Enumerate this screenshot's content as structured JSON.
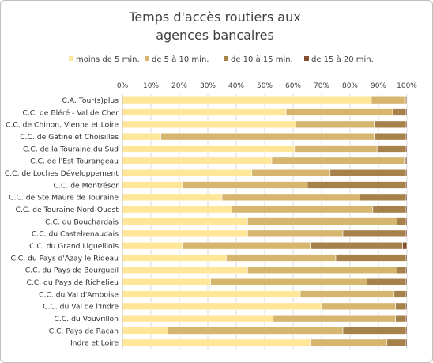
{
  "chart_data": {
    "type": "bar",
    "orientation": "horizontal",
    "stacked": "percent",
    "title": "Temps d'accès routiers aux agences bancaires",
    "title_lines": [
      "Temps d'accès routiers aux",
      "agences bancaires"
    ],
    "xlim": [
      0,
      100
    ],
    "x_ticks": [
      "0%",
      "10%",
      "20%",
      "30%",
      "40%",
      "50%",
      "60%",
      "70%",
      "80%",
      "90%",
      "100%"
    ],
    "grid": true,
    "legend_position": "top",
    "categories": [
      "C.A. Tour(s)plus",
      "C.C. de Bléré - Val de Cher",
      "C.C. de Chinon, Vienne et Loire",
      "C.C. de Gâtine et Choisilles",
      "C.C. de la Touraine du Sud",
      "C.C. de l'Est Tourangeau",
      "C.C. de Loches Développement",
      "C.C. de Montrésor",
      "C.C. de Ste Maure de Touraine",
      "C.C. de Touraine Nord-Ouest",
      "C.C. du Bouchardais",
      "C.C. du Castelrenaudais",
      "C.C. du Grand Ligueillois",
      "C.C. du Pays d'Azay le Rideau",
      "C.C. du Pays de Bourgueil",
      "C.C. du Pays de Richelieu",
      "C.C. du Val d'Amboise",
      "C.C. du Val de l'Indre",
      "C.C. du Vouvrillon",
      "C.C. Pays de Racan",
      "Indre et Loire"
    ],
    "series": [
      {
        "name": "moins de 5 min.",
        "color": "#ffe699",
        "values": [
          87.5,
          57.5,
          61,
          13.5,
          60.5,
          52.5,
          45.5,
          21,
          35,
          38.5,
          44,
          44,
          21,
          36.5,
          44,
          31,
          62.5,
          70,
          53,
          16,
          66
        ]
      },
      {
        "name": "de 5 à 10 min.",
        "color": "#d6b56e",
        "values": [
          11.7,
          37.5,
          27.5,
          75,
          29,
          46.5,
          27.5,
          44,
          48.5,
          49.5,
          52.5,
          33.5,
          45,
          38.5,
          52.5,
          55,
          33,
          26,
          43,
          61.5,
          27
        ]
      },
      {
        "name": "de 10 à 15 min.",
        "color": "#a6814a",
        "values": [
          0.5,
          4.5,
          11,
          11,
          10,
          0.5,
          26.5,
          34.5,
          16,
          11.5,
          3,
          22,
          32.5,
          24.5,
          3,
          13.5,
          4,
          3.5,
          3.5,
          22,
          6.5
        ]
      },
      {
        "name": "de 15 à 20 min.",
        "color": "#84512f",
        "values": [
          0.3,
          0.5,
          0.5,
          0.5,
          0.5,
          0.5,
          0.5,
          0.5,
          0.5,
          0.5,
          0.5,
          0.5,
          1.5,
          0.5,
          0.5,
          0.5,
          0.5,
          0.5,
          0.5,
          0.5,
          0.5
        ]
      }
    ]
  }
}
